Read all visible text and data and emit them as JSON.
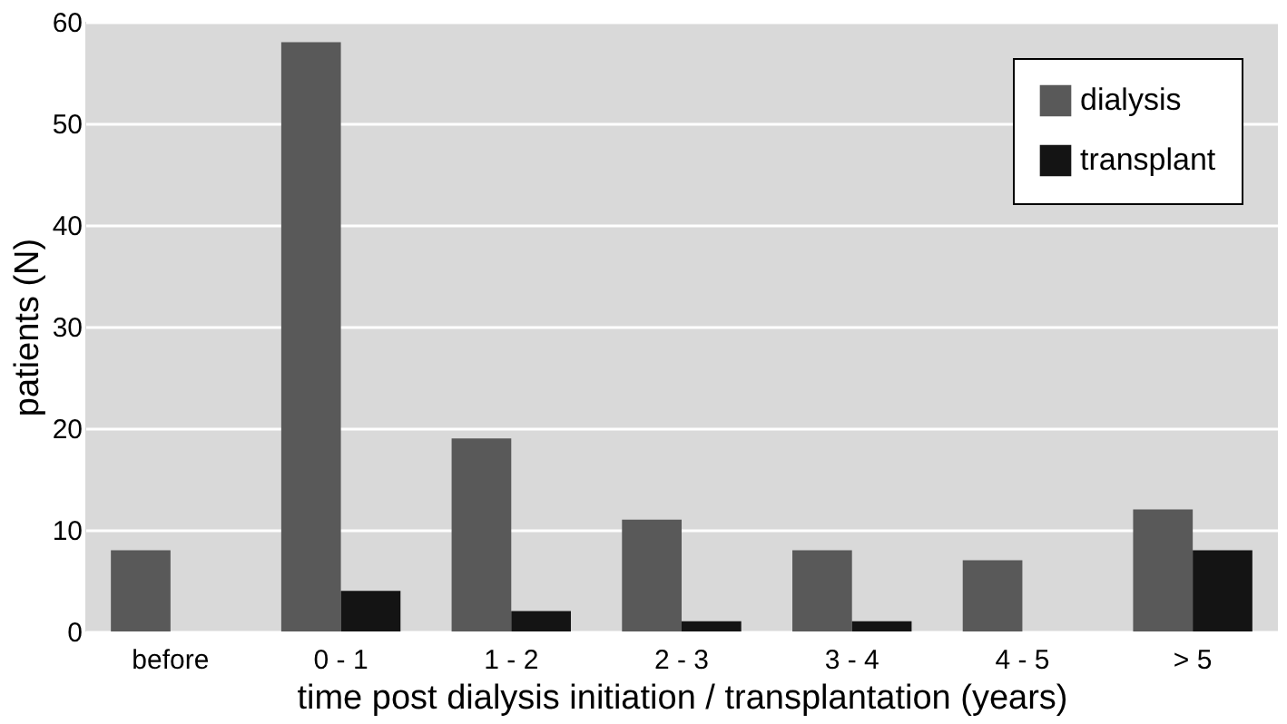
{
  "chart_data": {
    "type": "bar",
    "xlabel": "time post dialysis initiation / transplantation (years)",
    "ylabel": "patients (N)",
    "categories": [
      "before",
      "0 - 1",
      "1 - 2",
      "2 - 3",
      "3 - 4",
      "4 - 5",
      "> 5"
    ],
    "series": [
      {
        "name": "dialysis",
        "color": "#595959",
        "values": [
          8,
          58,
          19,
          11,
          8,
          7,
          12
        ]
      },
      {
        "name": "transplant",
        "color": "#141414",
        "values": [
          null,
          4,
          2,
          1,
          1,
          null,
          8
        ]
      }
    ],
    "ylim": [
      0,
      60
    ],
    "yticks": [
      0,
      10,
      20,
      30,
      40,
      50,
      60
    ],
    "grid": "y",
    "legend": "top right"
  }
}
